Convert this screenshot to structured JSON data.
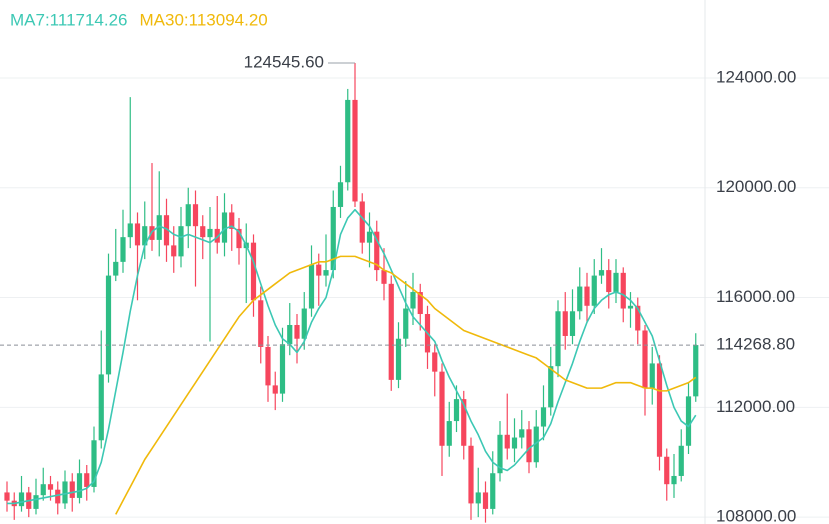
{
  "chart_data": {
    "type": "candlestick",
    "up_color": "#2ebd85",
    "down_color": "#f6465d",
    "open": [
      108900,
      108600,
      108400,
      108900,
      108300,
      108800,
      109200,
      109000,
      108500,
      109300,
      108700,
      109600,
      109100,
      110800,
      113200,
      116800,
      117300,
      118200,
      118700,
      117900,
      118600,
      118100,
      119000,
      117900,
      117500,
      118600,
      119400,
      118600,
      118200,
      118500,
      118000,
      119100,
      118500,
      117800,
      118000,
      115900,
      114200,
      112800,
      112500,
      114300,
      115000,
      114500,
      115600,
      117200,
      116800,
      117000,
      119300,
      120200,
      123200,
      119500,
      118000,
      118400,
      117000,
      116500,
      113000,
      114500,
      115600,
      116200,
      115400,
      114000,
      113300,
      110600,
      111500,
      112300,
      110600,
      108500,
      108900,
      108300,
      109600,
      111000,
      110500,
      110900,
      111200,
      110000,
      111300,
      112000,
      113500,
      115500,
      114600,
      115500,
      116400,
      115700,
      116800,
      117000,
      116200,
      116900,
      115600,
      115700,
      114800,
      112700,
      113600,
      110200,
      109200,
      109500,
      110600,
      112400
    ],
    "high": [
      109300,
      108900,
      109500,
      109100,
      109400,
      109800,
      109500,
      109300,
      109700,
      109600,
      110100,
      109900,
      111300,
      114800,
      117600,
      118500,
      119200,
      123300,
      119100,
      119500,
      120900,
      120600,
      119600,
      118600,
      119300,
      120000,
      119900,
      119000,
      119300,
      119700,
      119800,
      119400,
      118900,
      118700,
      118300,
      116400,
      114600,
      113300,
      114900,
      115800,
      115400,
      116200,
      117900,
      117600,
      118300,
      119900,
      120800,
      123600,
      124545.6,
      119800,
      119100,
      118800,
      117800,
      116800,
      115100,
      116600,
      116900,
      116500,
      115700,
      114300,
      113600,
      112200,
      112800,
      112600,
      110900,
      109800,
      109300,
      110400,
      111500,
      112500,
      111600,
      111900,
      111500,
      111900,
      112800,
      114200,
      115900,
      116200,
      116300,
      117100,
      116900,
      117400,
      117800,
      117400,
      117400,
      117100,
      116200,
      116000,
      115000,
      114200,
      113900,
      110500,
      110300,
      111200,
      112900,
      114700
    ],
    "low": [
      108200,
      107900,
      108200,
      108000,
      108100,
      108600,
      108600,
      108100,
      108300,
      108200,
      108500,
      108600,
      108900,
      110500,
      112900,
      116600,
      116900,
      117800,
      115900,
      117400,
      117700,
      117500,
      117300,
      116900,
      117100,
      117800,
      116400,
      117400,
      114400,
      117600,
      117500,
      117700,
      117200,
      115800,
      115300,
      113600,
      112200,
      111900,
      112200,
      113900,
      113600,
      114100,
      115300,
      115700,
      116400,
      116700,
      118900,
      119900,
      119300,
      117600,
      117100,
      116600,
      115900,
      112600,
      112700,
      114200,
      115000,
      114800,
      113400,
      112400,
      109500,
      110200,
      111100,
      110100,
      107900,
      108000,
      107800,
      108100,
      109300,
      110100,
      110000,
      110500,
      109600,
      109800,
      110800,
      111700,
      113100,
      114100,
      114300,
      115200,
      115100,
      115400,
      116500,
      115600,
      115800,
      115100,
      114900,
      114300,
      111700,
      112100,
      109700,
      108600,
      108700,
      109300,
      110300,
      112200
    ],
    "close": [
      108600,
      108400,
      108900,
      108300,
      108800,
      109200,
      109000,
      108500,
      109300,
      108700,
      109600,
      109100,
      110800,
      113200,
      116800,
      117300,
      118200,
      118700,
      117900,
      118600,
      118100,
      119000,
      117900,
      117500,
      118600,
      119400,
      118600,
      118200,
      118500,
      118000,
      119100,
      118500,
      117800,
      118000,
      115900,
      114200,
      112800,
      112500,
      114300,
      115000,
      114500,
      115600,
      117200,
      116800,
      117000,
      119300,
      120200,
      123200,
      119500,
      118000,
      118400,
      117000,
      116500,
      113000,
      114500,
      115600,
      116200,
      115400,
      114000,
      113300,
      110600,
      111500,
      112300,
      110600,
      108500,
      108900,
      108300,
      109600,
      111000,
      110500,
      110900,
      111200,
      110000,
      111300,
      112000,
      113500,
      115500,
      114600,
      115500,
      116400,
      115700,
      116800,
      117000,
      116200,
      116900,
      115600,
      115700,
      114800,
      112700,
      113600,
      110200,
      109200,
      109500,
      110600,
      112400,
      114268.8
    ],
    "series": [
      {
        "name": "MA7",
        "legend": "MA7:111714.26",
        "color": "#3cc8b4",
        "values": [
          108500,
          108500,
          108550,
          108600,
          108650,
          108700,
          108750,
          108800,
          108850,
          108900,
          108950,
          109050,
          109300,
          110000,
          111200,
          112600,
          114000,
          115500,
          116800,
          117900,
          118400,
          118600,
          118500,
          118300,
          118200,
          118300,
          118200,
          118100,
          118000,
          118200,
          118500,
          118600,
          118400,
          117900,
          117300,
          116500,
          115700,
          115000,
          114500,
          114300,
          114000,
          114400,
          115100,
          115600,
          116000,
          117000,
          118300,
          118900,
          119200,
          118900,
          118600,
          118100,
          117600,
          117000,
          116400,
          115800,
          115300,
          115000,
          114700,
          114400,
          113700,
          113100,
          112600,
          112100,
          111500,
          111000,
          110400,
          110000,
          109800,
          109700,
          109900,
          110200,
          110500,
          110700,
          110900,
          111400,
          112200,
          112900,
          113600,
          114400,
          115100,
          115600,
          115900,
          116100,
          116200,
          116100,
          115900,
          115600,
          115100,
          114600,
          113700,
          112800,
          112000,
          111500,
          111300,
          111714.26
        ]
      },
      {
        "name": "MA30",
        "legend": "MA30:113094.20",
        "color": "#f0b90b",
        "values": [
          null,
          null,
          null,
          null,
          null,
          null,
          null,
          null,
          null,
          null,
          null,
          null,
          null,
          null,
          null,
          108100,
          108600,
          109100,
          109600,
          110100,
          110500,
          110900,
          111300,
          111700,
          112100,
          112500,
          112900,
          113300,
          113700,
          114100,
          114500,
          114900,
          115300,
          115600,
          115900,
          116100,
          116300,
          116500,
          116700,
          116900,
          117000,
          117100,
          117200,
          117300,
          117300,
          117400,
          117500,
          117500,
          117500,
          117400,
          117300,
          117200,
          117000,
          116900,
          116700,
          116500,
          116300,
          116100,
          115900,
          115600,
          115400,
          115200,
          115000,
          114800,
          114700,
          114600,
          114500,
          114400,
          114300,
          114200,
          114100,
          114000,
          113900,
          113800,
          113600,
          113400,
          113200,
          113000,
          112900,
          112800,
          112700,
          112700,
          112700,
          112800,
          112900,
          112900,
          112900,
          112800,
          112700,
          112700,
          112600,
          112600,
          112700,
          112800,
          112900,
          113094.2
        ]
      }
    ],
    "ylim": [
      107750,
      126840
    ],
    "yticks": [
      {
        "value": 108000,
        "label": "108000.00"
      },
      {
        "value": 112000,
        "label": "112000.00"
      },
      {
        "value": 116000,
        "label": "116000.00"
      },
      {
        "value": 120000,
        "label": "120000.00"
      },
      {
        "value": 124000,
        "label": "124000.00"
      }
    ],
    "grid": true,
    "high_label": {
      "value": 124545.6,
      "label": "124545.60",
      "index": 48
    },
    "last_price": {
      "value": 114268.8,
      "label": "114268.80"
    }
  }
}
